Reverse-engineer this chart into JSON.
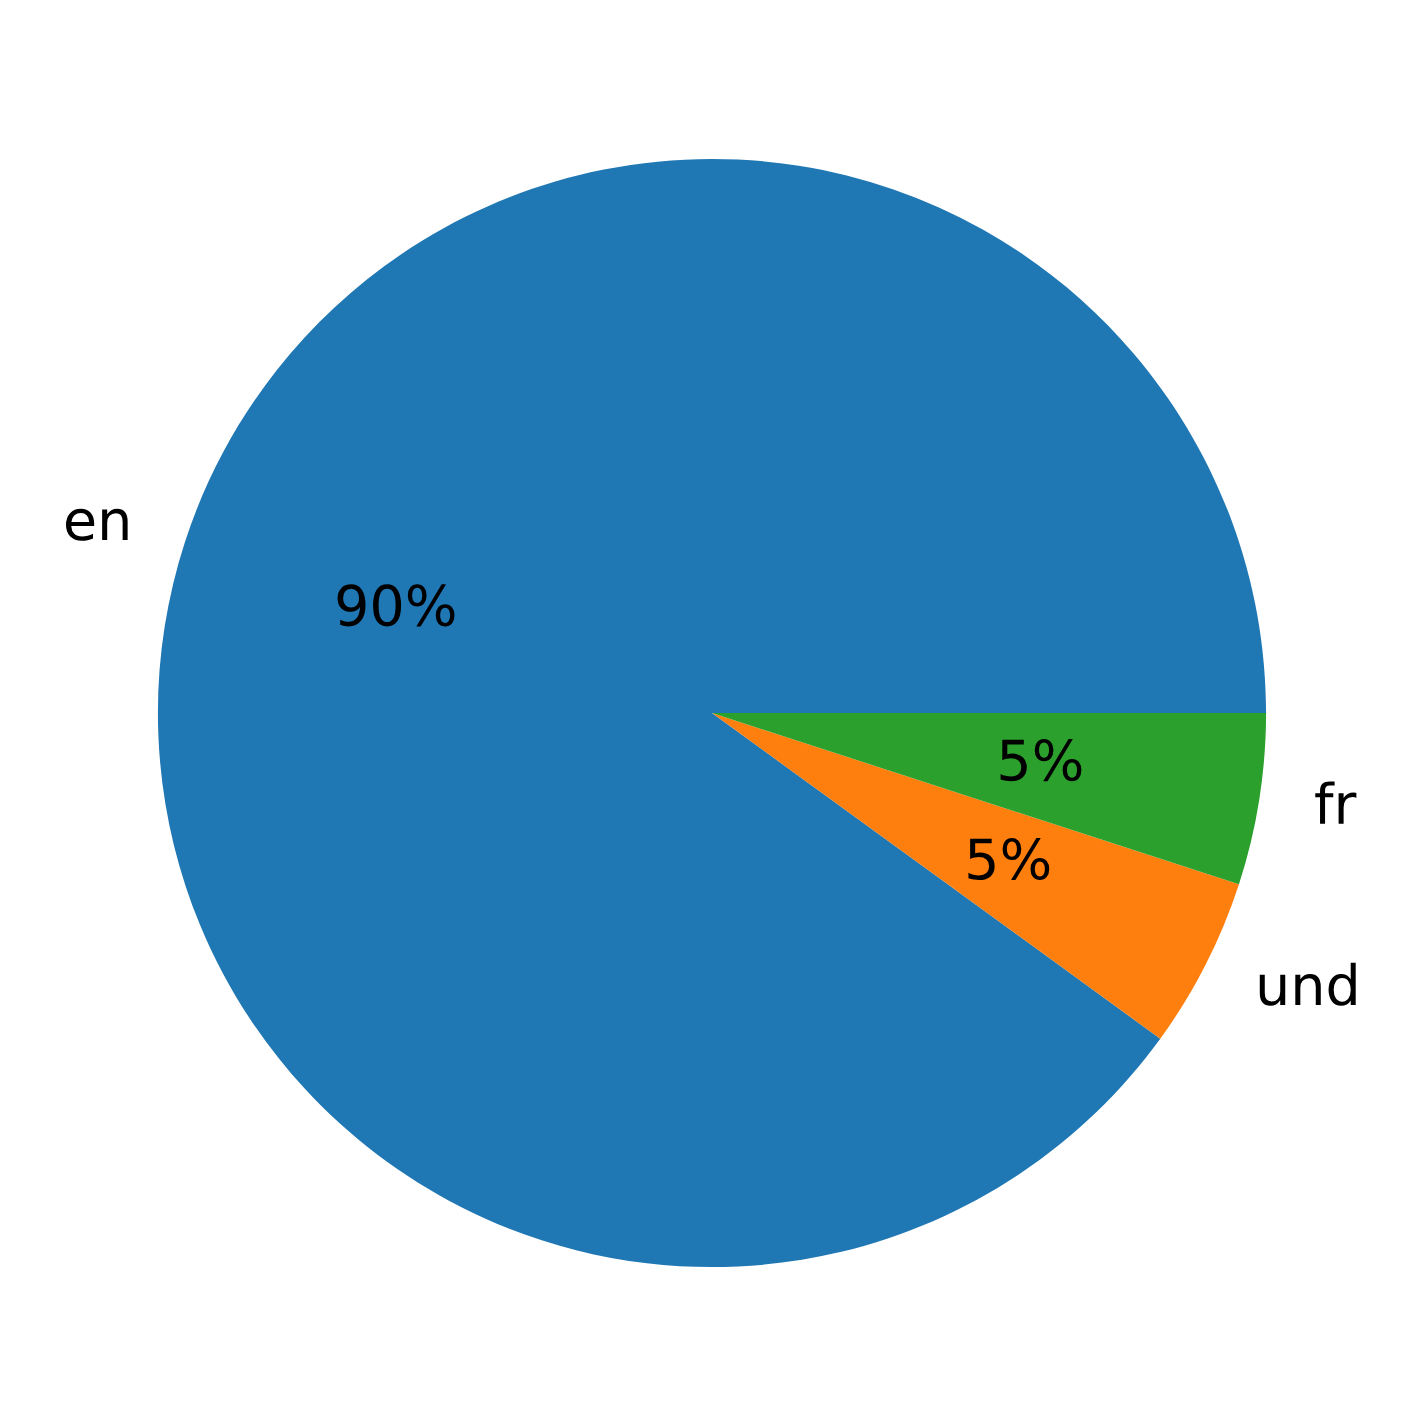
{
  "chart_data": {
    "type": "pie",
    "categories": [
      "en",
      "und",
      "fr"
    ],
    "values": [
      90,
      5,
      5
    ],
    "colors": [
      "#1f77b4",
      "#ff7f0e",
      "#2ca02c"
    ],
    "value_labels": [
      "90%",
      "5%",
      "5%"
    ]
  }
}
